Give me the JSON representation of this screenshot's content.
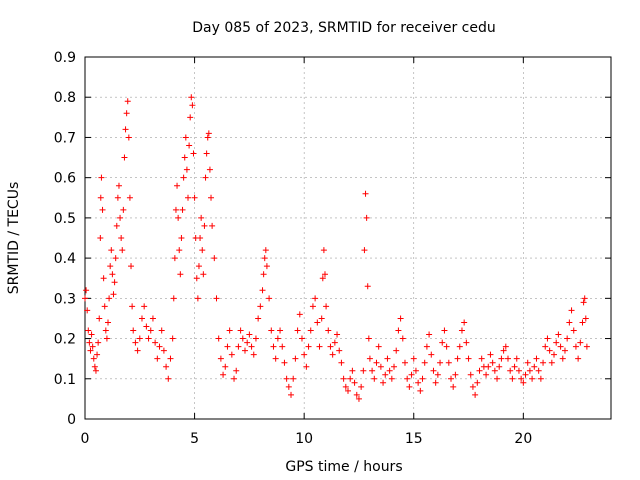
{
  "chart_data": {
    "type": "scatter",
    "title": "Day 085 of 2023, SRMTID for receiver cedu",
    "xlabel": "GPS time / hours",
    "ylabel": "SRMTID / TECUs",
    "xlim": [
      0,
      24
    ],
    "ylim": [
      0,
      0.9
    ],
    "x_ticks": [
      0,
      5,
      10,
      15,
      20
    ],
    "y_ticks": [
      0,
      0.1,
      0.2,
      0.3,
      0.4,
      0.5,
      0.6,
      0.7,
      0.8,
      0.9
    ],
    "grid": true,
    "marker": "+",
    "series": [
      {
        "name": "SRMTID",
        "color": "#ff0000",
        "points": [
          [
            0.0,
            0.3
          ],
          [
            0.05,
            0.32
          ],
          [
            0.1,
            0.27
          ],
          [
            0.15,
            0.22
          ],
          [
            0.2,
            0.19
          ],
          [
            0.25,
            0.17
          ],
          [
            0.3,
            0.21
          ],
          [
            0.35,
            0.18
          ],
          [
            0.4,
            0.15
          ],
          [
            0.45,
            0.13
          ],
          [
            0.5,
            0.12
          ],
          [
            0.55,
            0.16
          ],
          [
            0.6,
            0.19
          ],
          [
            0.65,
            0.25
          ],
          [
            0.7,
            0.45
          ],
          [
            0.72,
            0.55
          ],
          [
            0.75,
            0.6
          ],
          [
            0.8,
            0.52
          ],
          [
            0.85,
            0.35
          ],
          [
            0.9,
            0.28
          ],
          [
            0.95,
            0.22
          ],
          [
            1.0,
            0.2
          ],
          [
            1.05,
            0.24
          ],
          [
            1.1,
            0.3
          ],
          [
            1.15,
            0.38
          ],
          [
            1.2,
            0.42
          ],
          [
            1.25,
            0.36
          ],
          [
            1.3,
            0.31
          ],
          [
            1.35,
            0.34
          ],
          [
            1.4,
            0.4
          ],
          [
            1.45,
            0.48
          ],
          [
            1.5,
            0.55
          ],
          [
            1.55,
            0.58
          ],
          [
            1.6,
            0.5
          ],
          [
            1.65,
            0.45
          ],
          [
            1.7,
            0.42
          ],
          [
            1.75,
            0.52
          ],
          [
            1.8,
            0.65
          ],
          [
            1.85,
            0.72
          ],
          [
            1.9,
            0.76
          ],
          [
            1.95,
            0.79
          ],
          [
            2.0,
            0.7
          ],
          [
            2.05,
            0.55
          ],
          [
            2.1,
            0.38
          ],
          [
            2.15,
            0.28
          ],
          [
            2.2,
            0.22
          ],
          [
            2.3,
            0.19
          ],
          [
            2.4,
            0.17
          ],
          [
            2.5,
            0.2
          ],
          [
            2.6,
            0.25
          ],
          [
            2.7,
            0.28
          ],
          [
            2.8,
            0.23
          ],
          [
            2.9,
            0.2
          ],
          [
            3.0,
            0.22
          ],
          [
            3.1,
            0.25
          ],
          [
            3.2,
            0.19
          ],
          [
            3.3,
            0.15
          ],
          [
            3.4,
            0.18
          ],
          [
            3.5,
            0.22
          ],
          [
            3.6,
            0.17
          ],
          [
            3.7,
            0.13
          ],
          [
            3.8,
            0.1
          ],
          [
            3.9,
            0.15
          ],
          [
            4.0,
            0.2
          ],
          [
            4.05,
            0.3
          ],
          [
            4.1,
            0.4
          ],
          [
            4.15,
            0.52
          ],
          [
            4.2,
            0.58
          ],
          [
            4.25,
            0.5
          ],
          [
            4.3,
            0.42
          ],
          [
            4.35,
            0.36
          ],
          [
            4.4,
            0.45
          ],
          [
            4.45,
            0.52
          ],
          [
            4.5,
            0.6
          ],
          [
            4.55,
            0.65
          ],
          [
            4.6,
            0.7
          ],
          [
            4.65,
            0.62
          ],
          [
            4.7,
            0.55
          ],
          [
            4.75,
            0.68
          ],
          [
            4.8,
            0.75
          ],
          [
            4.85,
            0.8
          ],
          [
            4.9,
            0.78
          ],
          [
            4.95,
            0.66
          ],
          [
            5.0,
            0.55
          ],
          [
            5.05,
            0.45
          ],
          [
            5.1,
            0.35
          ],
          [
            5.15,
            0.3
          ],
          [
            5.2,
            0.38
          ],
          [
            5.25,
            0.45
          ],
          [
            5.3,
            0.5
          ],
          [
            5.35,
            0.42
          ],
          [
            5.4,
            0.36
          ],
          [
            5.45,
            0.48
          ],
          [
            5.5,
            0.6
          ],
          [
            5.55,
            0.66
          ],
          [
            5.6,
            0.7
          ],
          [
            5.65,
            0.71
          ],
          [
            5.7,
            0.62
          ],
          [
            5.75,
            0.55
          ],
          [
            5.8,
            0.48
          ],
          [
            5.9,
            0.4
          ],
          [
            6.0,
            0.3
          ],
          [
            6.1,
            0.2
          ],
          [
            6.2,
            0.15
          ],
          [
            6.3,
            0.11
          ],
          [
            6.4,
            0.13
          ],
          [
            6.5,
            0.18
          ],
          [
            6.6,
            0.22
          ],
          [
            6.7,
            0.16
          ],
          [
            6.8,
            0.1
          ],
          [
            6.9,
            0.12
          ],
          [
            7.0,
            0.18
          ],
          [
            7.1,
            0.22
          ],
          [
            7.2,
            0.2
          ],
          [
            7.3,
            0.17
          ],
          [
            7.4,
            0.19
          ],
          [
            7.5,
            0.21
          ],
          [
            7.6,
            0.18
          ],
          [
            7.7,
            0.16
          ],
          [
            7.8,
            0.2
          ],
          [
            7.9,
            0.25
          ],
          [
            8.0,
            0.28
          ],
          [
            8.1,
            0.32
          ],
          [
            8.15,
            0.36
          ],
          [
            8.2,
            0.4
          ],
          [
            8.25,
            0.42
          ],
          [
            8.3,
            0.38
          ],
          [
            8.4,
            0.3
          ],
          [
            8.5,
            0.22
          ],
          [
            8.6,
            0.18
          ],
          [
            8.7,
            0.15
          ],
          [
            8.8,
            0.2
          ],
          [
            8.9,
            0.22
          ],
          [
            9.0,
            0.18
          ],
          [
            9.1,
            0.14
          ],
          [
            9.2,
            0.1
          ],
          [
            9.3,
            0.08
          ],
          [
            9.4,
            0.06
          ],
          [
            9.5,
            0.1
          ],
          [
            9.6,
            0.15
          ],
          [
            9.7,
            0.22
          ],
          [
            9.8,
            0.26
          ],
          [
            9.9,
            0.2
          ],
          [
            10.0,
            0.16
          ],
          [
            10.1,
            0.13
          ],
          [
            10.2,
            0.18
          ],
          [
            10.3,
            0.22
          ],
          [
            10.4,
            0.28
          ],
          [
            10.5,
            0.3
          ],
          [
            10.6,
            0.24
          ],
          [
            10.7,
            0.18
          ],
          [
            10.8,
            0.25
          ],
          [
            10.85,
            0.35
          ],
          [
            10.9,
            0.42
          ],
          [
            10.95,
            0.36
          ],
          [
            11.0,
            0.28
          ],
          [
            11.1,
            0.22
          ],
          [
            11.2,
            0.18
          ],
          [
            11.3,
            0.16
          ],
          [
            11.4,
            0.19
          ],
          [
            11.5,
            0.21
          ],
          [
            11.6,
            0.17
          ],
          [
            11.7,
            0.14
          ],
          [
            11.8,
            0.1
          ],
          [
            11.9,
            0.08
          ],
          [
            12.0,
            0.07
          ],
          [
            12.1,
            0.1
          ],
          [
            12.2,
            0.12
          ],
          [
            12.3,
            0.09
          ],
          [
            12.4,
            0.06
          ],
          [
            12.5,
            0.05
          ],
          [
            12.6,
            0.08
          ],
          [
            12.7,
            0.12
          ],
          [
            12.75,
            0.42
          ],
          [
            12.8,
            0.56
          ],
          [
            12.85,
            0.5
          ],
          [
            12.9,
            0.33
          ],
          [
            12.95,
            0.2
          ],
          [
            13.0,
            0.15
          ],
          [
            13.1,
            0.12
          ],
          [
            13.2,
            0.1
          ],
          [
            13.3,
            0.14
          ],
          [
            13.4,
            0.18
          ],
          [
            13.5,
            0.13
          ],
          [
            13.6,
            0.09
          ],
          [
            13.7,
            0.11
          ],
          [
            13.8,
            0.15
          ],
          [
            13.9,
            0.12
          ],
          [
            14.0,
            0.1
          ],
          [
            14.1,
            0.13
          ],
          [
            14.2,
            0.17
          ],
          [
            14.3,
            0.22
          ],
          [
            14.4,
            0.25
          ],
          [
            14.5,
            0.2
          ],
          [
            14.6,
            0.14
          ],
          [
            14.7,
            0.1
          ],
          [
            14.8,
            0.08
          ],
          [
            14.9,
            0.11
          ],
          [
            15.0,
            0.15
          ],
          [
            15.1,
            0.12
          ],
          [
            15.2,
            0.09
          ],
          [
            15.3,
            0.07
          ],
          [
            15.4,
            0.1
          ],
          [
            15.5,
            0.14
          ],
          [
            15.6,
            0.18
          ],
          [
            15.7,
            0.21
          ],
          [
            15.8,
            0.16
          ],
          [
            15.9,
            0.12
          ],
          [
            16.0,
            0.09
          ],
          [
            16.1,
            0.11
          ],
          [
            16.2,
            0.14
          ],
          [
            16.3,
            0.19
          ],
          [
            16.4,
            0.22
          ],
          [
            16.5,
            0.18
          ],
          [
            16.6,
            0.14
          ],
          [
            16.7,
            0.1
          ],
          [
            16.8,
            0.08
          ],
          [
            16.9,
            0.11
          ],
          [
            17.0,
            0.15
          ],
          [
            17.1,
            0.18
          ],
          [
            17.2,
            0.22
          ],
          [
            17.3,
            0.24
          ],
          [
            17.4,
            0.19
          ],
          [
            17.5,
            0.15
          ],
          [
            17.6,
            0.11
          ],
          [
            17.7,
            0.08
          ],
          [
            17.8,
            0.06
          ],
          [
            17.9,
            0.09
          ],
          [
            18.0,
            0.12
          ],
          [
            18.1,
            0.15
          ],
          [
            18.2,
            0.13
          ],
          [
            18.3,
            0.11
          ],
          [
            18.4,
            0.13
          ],
          [
            18.5,
            0.16
          ],
          [
            18.6,
            0.14
          ],
          [
            18.7,
            0.12
          ],
          [
            18.8,
            0.1
          ],
          [
            18.9,
            0.13
          ],
          [
            19.0,
            0.15
          ],
          [
            19.1,
            0.17
          ],
          [
            19.2,
            0.18
          ],
          [
            19.3,
            0.15
          ],
          [
            19.4,
            0.12
          ],
          [
            19.5,
            0.1
          ],
          [
            19.6,
            0.13
          ],
          [
            19.7,
            0.15
          ],
          [
            19.8,
            0.12
          ],
          [
            19.9,
            0.1
          ],
          [
            20.0,
            0.09
          ],
          [
            20.1,
            0.11
          ],
          [
            20.2,
            0.14
          ],
          [
            20.3,
            0.12
          ],
          [
            20.4,
            0.1
          ],
          [
            20.5,
            0.13
          ],
          [
            20.6,
            0.15
          ],
          [
            20.7,
            0.12
          ],
          [
            20.8,
            0.1
          ],
          [
            20.9,
            0.14
          ],
          [
            21.0,
            0.18
          ],
          [
            21.1,
            0.2
          ],
          [
            21.2,
            0.17
          ],
          [
            21.3,
            0.14
          ],
          [
            21.4,
            0.16
          ],
          [
            21.5,
            0.19
          ],
          [
            21.6,
            0.21
          ],
          [
            21.7,
            0.18
          ],
          [
            21.8,
            0.15
          ],
          [
            21.9,
            0.17
          ],
          [
            22.0,
            0.2
          ],
          [
            22.1,
            0.24
          ],
          [
            22.2,
            0.27
          ],
          [
            22.3,
            0.22
          ],
          [
            22.4,
            0.18
          ],
          [
            22.5,
            0.15
          ],
          [
            22.6,
            0.19
          ],
          [
            22.7,
            0.24
          ],
          [
            22.75,
            0.29
          ],
          [
            22.8,
            0.3
          ],
          [
            22.85,
            0.25
          ],
          [
            22.9,
            0.18
          ]
        ]
      }
    ]
  }
}
